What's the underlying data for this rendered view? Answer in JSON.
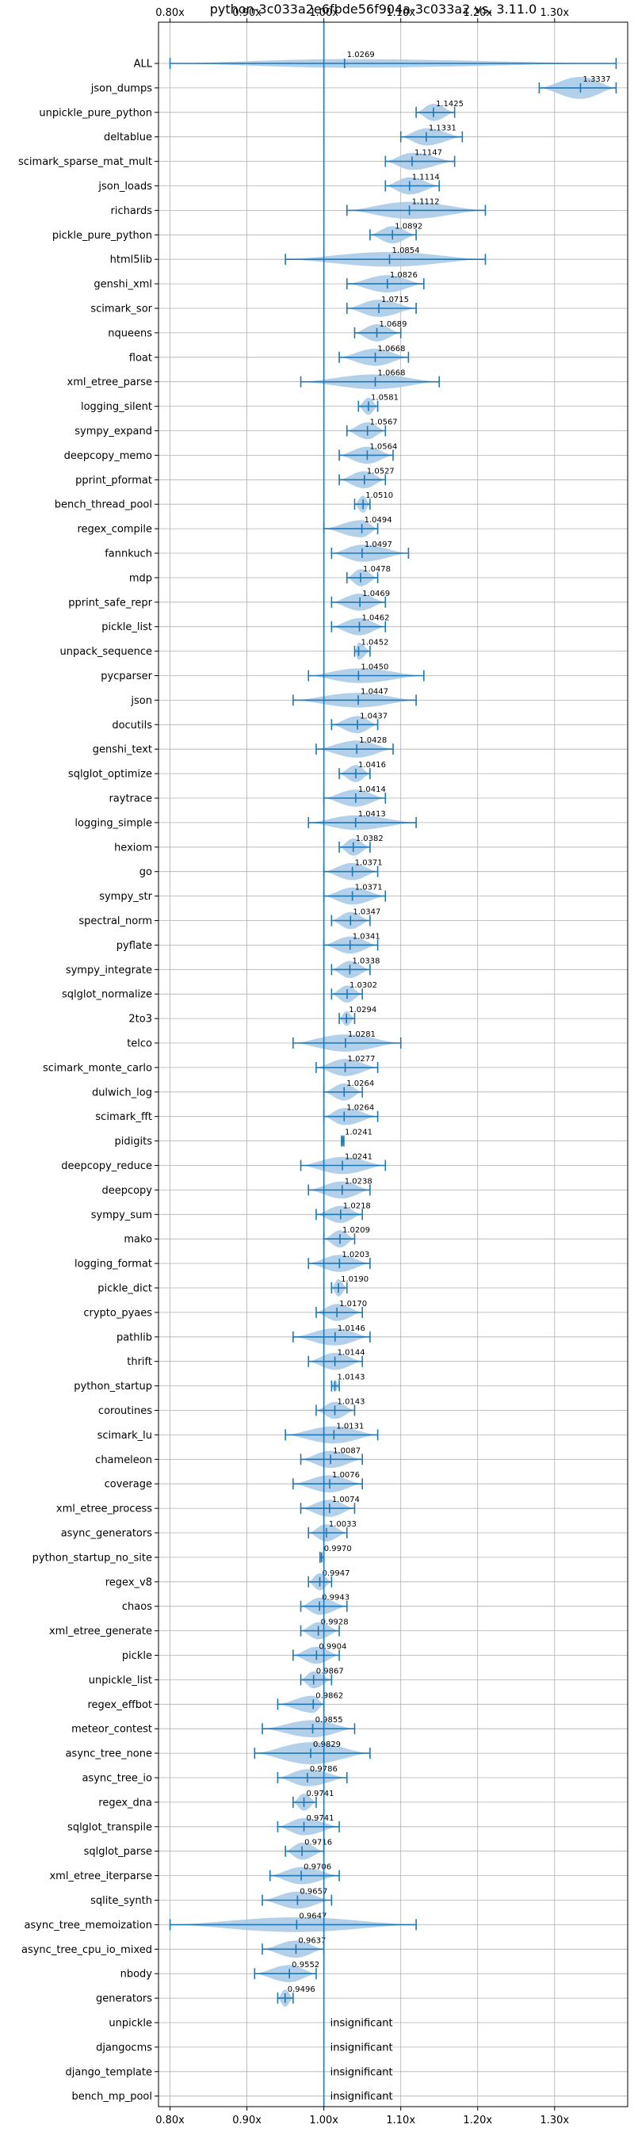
{
  "chart_data": {
    "type": "violin",
    "title": "python-3c033a2e6fbde56f904a-3c033a2 vs. 3.11.0",
    "xlim": [
      0.785,
      1.395
    ],
    "xticks": [
      "0.80x",
      "0.90x",
      "1.00x",
      "1.10x",
      "1.20x",
      "1.30x"
    ],
    "xtick_values": [
      0.8,
      0.9,
      1.0,
      1.1,
      1.2,
      1.3
    ],
    "reference_line": 1.0,
    "grid": true,
    "colors": {
      "line": "#1f77b4",
      "violin": "#a6c8e6"
    },
    "insignificant_text": "insignificant",
    "benchmarks": [
      {
        "name": "ALL",
        "label": "1.0269",
        "median": 1.0269,
        "lo": 0.8,
        "hi": 1.38,
        "width": 0.35
      },
      {
        "name": "json_dumps",
        "label": "1.3337",
        "median": 1.3337,
        "lo": 1.28,
        "hi": 1.38,
        "width": 0.9
      },
      {
        "name": "unpickle_pure_python",
        "label": "1.1425",
        "median": 1.1425,
        "lo": 1.12,
        "hi": 1.17,
        "width": 0.7
      },
      {
        "name": "deltablue",
        "label": "1.1331",
        "median": 1.1331,
        "lo": 1.1,
        "hi": 1.18,
        "width": 0.7
      },
      {
        "name": "scimark_sparse_mat_mult",
        "label": "1.1147",
        "median": 1.1147,
        "lo": 1.08,
        "hi": 1.17,
        "width": 0.7
      },
      {
        "name": "json_loads",
        "label": "1.1114",
        "median": 1.1114,
        "lo": 1.08,
        "hi": 1.15,
        "width": 0.7
      },
      {
        "name": "richards",
        "label": "1.1112",
        "median": 1.1112,
        "lo": 1.03,
        "hi": 1.21,
        "width": 0.7
      },
      {
        "name": "pickle_pure_python",
        "label": "1.0892",
        "median": 1.0892,
        "lo": 1.06,
        "hi": 1.12,
        "width": 0.7
      },
      {
        "name": "html5lib",
        "label": "1.0854",
        "median": 1.0854,
        "lo": 0.95,
        "hi": 1.21,
        "width": 0.6
      },
      {
        "name": "genshi_xml",
        "label": "1.0826",
        "median": 1.0826,
        "lo": 1.03,
        "hi": 1.13,
        "width": 0.7
      },
      {
        "name": "scimark_sor",
        "label": "1.0715",
        "median": 1.0715,
        "lo": 1.03,
        "hi": 1.12,
        "width": 0.7
      },
      {
        "name": "nqueens",
        "label": "1.0689",
        "median": 1.0689,
        "lo": 1.04,
        "hi": 1.1,
        "width": 0.7
      },
      {
        "name": "float",
        "label": "1.0668",
        "median": 1.0668,
        "lo": 1.02,
        "hi": 1.11,
        "width": 0.7
      },
      {
        "name": "xml_etree_parse",
        "label": "1.0668",
        "median": 1.0668,
        "lo": 0.97,
        "hi": 1.15,
        "width": 0.6
      },
      {
        "name": "logging_silent",
        "label": "1.0581",
        "median": 1.0581,
        "lo": 1.045,
        "hi": 1.07,
        "width": 0.7
      },
      {
        "name": "sympy_expand",
        "label": "1.0567",
        "median": 1.0567,
        "lo": 1.03,
        "hi": 1.08,
        "width": 0.7
      },
      {
        "name": "deepcopy_memo",
        "label": "1.0564",
        "median": 1.0564,
        "lo": 1.02,
        "hi": 1.09,
        "width": 0.7
      },
      {
        "name": "pprint_pformat",
        "label": "1.0527",
        "median": 1.0527,
        "lo": 1.02,
        "hi": 1.08,
        "width": 0.7
      },
      {
        "name": "bench_thread_pool",
        "label": "1.0510",
        "median": 1.051,
        "lo": 1.04,
        "hi": 1.06,
        "width": 0.7
      },
      {
        "name": "regex_compile",
        "label": "1.0494",
        "median": 1.0494,
        "lo": 1.0,
        "hi": 1.07,
        "width": 0.7
      },
      {
        "name": "fannkuch",
        "label": "1.0497",
        "median": 1.0497,
        "lo": 1.01,
        "hi": 1.11,
        "width": 0.7
      },
      {
        "name": "mdp",
        "label": "1.0478",
        "median": 1.0478,
        "lo": 1.03,
        "hi": 1.07,
        "width": 0.7
      },
      {
        "name": "pprint_safe_repr",
        "label": "1.0469",
        "median": 1.0469,
        "lo": 1.01,
        "hi": 1.08,
        "width": 0.7
      },
      {
        "name": "pickle_list",
        "label": "1.0462",
        "median": 1.0462,
        "lo": 1.01,
        "hi": 1.08,
        "width": 0.7
      },
      {
        "name": "unpack_sequence",
        "label": "1.0452",
        "median": 1.0452,
        "lo": 1.04,
        "hi": 1.06,
        "width": 0.7
      },
      {
        "name": "pycparser",
        "label": "1.0450",
        "median": 1.045,
        "lo": 0.98,
        "hi": 1.13,
        "width": 0.6
      },
      {
        "name": "json",
        "label": "1.0447",
        "median": 1.0447,
        "lo": 0.96,
        "hi": 1.12,
        "width": 0.6
      },
      {
        "name": "docutils",
        "label": "1.0437",
        "median": 1.0437,
        "lo": 1.01,
        "hi": 1.07,
        "width": 0.7
      },
      {
        "name": "genshi_text",
        "label": "1.0428",
        "median": 1.0428,
        "lo": 0.99,
        "hi": 1.09,
        "width": 0.7
      },
      {
        "name": "sqlglot_optimize",
        "label": "1.0416",
        "median": 1.0416,
        "lo": 1.02,
        "hi": 1.06,
        "width": 0.7
      },
      {
        "name": "raytrace",
        "label": "1.0414",
        "median": 1.0414,
        "lo": 1.0,
        "hi": 1.08,
        "width": 0.7
      },
      {
        "name": "logging_simple",
        "label": "1.0413",
        "median": 1.0413,
        "lo": 0.98,
        "hi": 1.12,
        "width": 0.6
      },
      {
        "name": "hexiom",
        "label": "1.0382",
        "median": 1.0382,
        "lo": 1.02,
        "hi": 1.06,
        "width": 0.7
      },
      {
        "name": "go",
        "label": "1.0371",
        "median": 1.0371,
        "lo": 1.0,
        "hi": 1.07,
        "width": 0.7
      },
      {
        "name": "sympy_str",
        "label": "1.0371",
        "median": 1.0371,
        "lo": 1.0,
        "hi": 1.08,
        "width": 0.7
      },
      {
        "name": "spectral_norm",
        "label": "1.0347",
        "median": 1.0347,
        "lo": 1.01,
        "hi": 1.06,
        "width": 0.7
      },
      {
        "name": "pyflate",
        "label": "1.0341",
        "median": 1.0341,
        "lo": 1.0,
        "hi": 1.07,
        "width": 0.7
      },
      {
        "name": "sympy_integrate",
        "label": "1.0338",
        "median": 1.0338,
        "lo": 1.01,
        "hi": 1.06,
        "width": 0.7
      },
      {
        "name": "sqlglot_normalize",
        "label": "1.0302",
        "median": 1.0302,
        "lo": 1.01,
        "hi": 1.05,
        "width": 0.7
      },
      {
        "name": "2to3",
        "label": "1.0294",
        "median": 1.0294,
        "lo": 1.02,
        "hi": 1.04,
        "width": 0.6
      },
      {
        "name": "telco",
        "label": "1.0281",
        "median": 1.0281,
        "lo": 0.96,
        "hi": 1.1,
        "width": 0.7
      },
      {
        "name": "scimark_monte_carlo",
        "label": "1.0277",
        "median": 1.0277,
        "lo": 0.99,
        "hi": 1.07,
        "width": 0.7
      },
      {
        "name": "dulwich_log",
        "label": "1.0264",
        "median": 1.0264,
        "lo": 1.0,
        "hi": 1.05,
        "width": 0.7
      },
      {
        "name": "scimark_fft",
        "label": "1.0264",
        "median": 1.0264,
        "lo": 1.0,
        "hi": 1.07,
        "width": 0.7
      },
      {
        "name": "pidigits",
        "label": "1.0241",
        "median": 1.0241,
        "lo": 1.023,
        "hi": 1.026,
        "width": 0.5
      },
      {
        "name": "deepcopy_reduce",
        "label": "1.0241",
        "median": 1.0241,
        "lo": 0.97,
        "hi": 1.08,
        "width": 0.7
      },
      {
        "name": "deepcopy",
        "label": "1.0238",
        "median": 1.0238,
        "lo": 0.98,
        "hi": 1.06,
        "width": 0.7
      },
      {
        "name": "sympy_sum",
        "label": "1.0218",
        "median": 1.0218,
        "lo": 0.99,
        "hi": 1.05,
        "width": 0.7
      },
      {
        "name": "mako",
        "label": "1.0209",
        "median": 1.0209,
        "lo": 1.0,
        "hi": 1.04,
        "width": 0.7
      },
      {
        "name": "logging_format",
        "label": "1.0203",
        "median": 1.0203,
        "lo": 0.98,
        "hi": 1.06,
        "width": 0.7
      },
      {
        "name": "pickle_dict",
        "label": "1.0190",
        "median": 1.019,
        "lo": 1.01,
        "hi": 1.03,
        "width": 0.7
      },
      {
        "name": "crypto_pyaes",
        "label": "1.0170",
        "median": 1.017,
        "lo": 0.99,
        "hi": 1.05,
        "width": 0.7
      },
      {
        "name": "pathlib",
        "label": "1.0146",
        "median": 1.0146,
        "lo": 0.96,
        "hi": 1.06,
        "width": 0.7
      },
      {
        "name": "thrift",
        "label": "1.0144",
        "median": 1.0144,
        "lo": 0.98,
        "hi": 1.05,
        "width": 0.7
      },
      {
        "name": "python_startup",
        "label": "1.0143",
        "median": 1.0143,
        "lo": 1.01,
        "hi": 1.02,
        "width": 0.5
      },
      {
        "name": "coroutines",
        "label": "1.0143",
        "median": 1.0143,
        "lo": 0.99,
        "hi": 1.04,
        "width": 0.7
      },
      {
        "name": "scimark_lu",
        "label": "1.0131",
        "median": 1.0131,
        "lo": 0.95,
        "hi": 1.07,
        "width": 0.7
      },
      {
        "name": "chameleon",
        "label": "1.0087",
        "median": 1.0087,
        "lo": 0.97,
        "hi": 1.05,
        "width": 0.7
      },
      {
        "name": "coverage",
        "label": "1.0076",
        "median": 1.0076,
        "lo": 0.96,
        "hi": 1.05,
        "width": 0.7
      },
      {
        "name": "xml_etree_process",
        "label": "1.0074",
        "median": 1.0074,
        "lo": 0.97,
        "hi": 1.04,
        "width": 0.7
      },
      {
        "name": "async_generators",
        "label": "1.0033",
        "median": 1.0033,
        "lo": 0.98,
        "hi": 1.03,
        "width": 0.7
      },
      {
        "name": "python_startup_no_site",
        "label": "0.9970",
        "median": 0.997,
        "lo": 0.995,
        "hi": 1.0,
        "width": 0.5
      },
      {
        "name": "regex_v8",
        "label": "0.9947",
        "median": 0.9947,
        "lo": 0.98,
        "hi": 1.01,
        "width": 0.7
      },
      {
        "name": "chaos",
        "label": "0.9943",
        "median": 0.9943,
        "lo": 0.97,
        "hi": 1.03,
        "width": 0.7
      },
      {
        "name": "xml_etree_generate",
        "label": "0.9928",
        "median": 0.9928,
        "lo": 0.97,
        "hi": 1.02,
        "width": 0.7
      },
      {
        "name": "pickle",
        "label": "0.9904",
        "median": 0.9904,
        "lo": 0.96,
        "hi": 1.02,
        "width": 0.7
      },
      {
        "name": "unpickle_list",
        "label": "0.9867",
        "median": 0.9867,
        "lo": 0.97,
        "hi": 1.01,
        "width": 0.7
      },
      {
        "name": "regex_effbot",
        "label": "0.9862",
        "median": 0.9862,
        "lo": 0.94,
        "hi": 1.0,
        "width": 0.7
      },
      {
        "name": "meteor_contest",
        "label": "0.9855",
        "median": 0.9855,
        "lo": 0.92,
        "hi": 1.04,
        "width": 0.7
      },
      {
        "name": "async_tree_none",
        "label": "0.9829",
        "median": 0.9829,
        "lo": 0.91,
        "hi": 1.06,
        "width": 0.9
      },
      {
        "name": "async_tree_io",
        "label": "0.9786",
        "median": 0.9786,
        "lo": 0.94,
        "hi": 1.03,
        "width": 0.7
      },
      {
        "name": "regex_dna",
        "label": "0.9741",
        "median": 0.9741,
        "lo": 0.96,
        "hi": 0.99,
        "width": 0.7
      },
      {
        "name": "sqlglot_transpile",
        "label": "0.9741",
        "median": 0.9741,
        "lo": 0.94,
        "hi": 1.02,
        "width": 0.7
      },
      {
        "name": "sqlglot_parse",
        "label": "0.9716",
        "median": 0.9716,
        "lo": 0.95,
        "hi": 1.0,
        "width": 0.7
      },
      {
        "name": "xml_etree_iterparse",
        "label": "0.9706",
        "median": 0.9706,
        "lo": 0.93,
        "hi": 1.02,
        "width": 0.7
      },
      {
        "name": "sqlite_synth",
        "label": "0.9657",
        "median": 0.9657,
        "lo": 0.92,
        "hi": 1.01,
        "width": 0.7
      },
      {
        "name": "async_tree_memoization",
        "label": "0.9647",
        "median": 0.9647,
        "lo": 0.8,
        "hi": 1.12,
        "width": 0.6
      },
      {
        "name": "async_tree_cpu_io_mixed",
        "label": "0.9637",
        "median": 0.9637,
        "lo": 0.92,
        "hi": 1.0,
        "width": 0.7
      },
      {
        "name": "nbody",
        "label": "0.9552",
        "median": 0.9552,
        "lo": 0.91,
        "hi": 0.99,
        "width": 0.7
      },
      {
        "name": "generators",
        "label": "0.9496",
        "median": 0.9496,
        "lo": 0.94,
        "hi": 0.96,
        "width": 0.7
      },
      {
        "name": "unpickle",
        "label": null
      },
      {
        "name": "djangocms",
        "label": null
      },
      {
        "name": "django_template",
        "label": null
      },
      {
        "name": "bench_mp_pool",
        "label": null
      }
    ]
  }
}
